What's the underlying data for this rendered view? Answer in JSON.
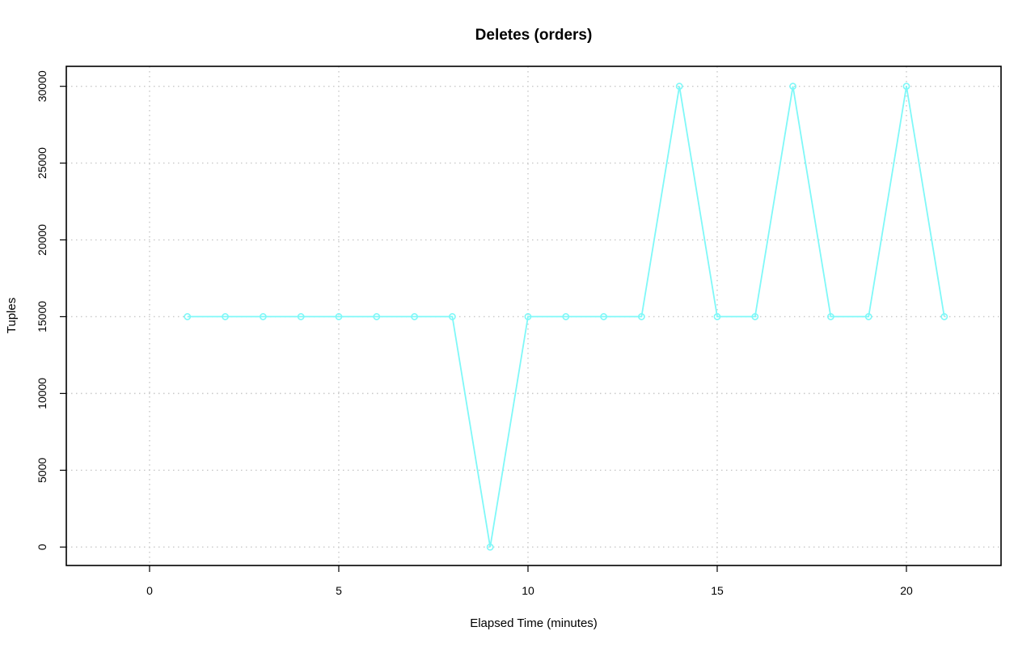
{
  "chart_data": {
    "type": "line",
    "title": "Deletes (orders)",
    "xlabel": "Elapsed Time (minutes)",
    "ylabel": "Tuples",
    "xlim": [
      -2.2,
      22.5
    ],
    "ylim": [
      -1200,
      31300
    ],
    "xticks": [
      0,
      5,
      10,
      15,
      20
    ],
    "yticks": [
      0,
      5000,
      10000,
      15000,
      20000,
      25000,
      30000
    ],
    "grid": true,
    "legend": "none",
    "series": [
      {
        "color": "#7ff8f8",
        "x": [
          1,
          2,
          3,
          4,
          5,
          6,
          7,
          8,
          9,
          10,
          11,
          12,
          13,
          14,
          15,
          16,
          17,
          18,
          19,
          20,
          21
        ],
        "y": [
          15000,
          15000,
          15000,
          15000,
          15000,
          15000,
          15000,
          15000,
          0,
          15000,
          15000,
          15000,
          15000,
          30000,
          15000,
          15000,
          30000,
          15000,
          15000,
          30000,
          15000
        ]
      }
    ]
  }
}
